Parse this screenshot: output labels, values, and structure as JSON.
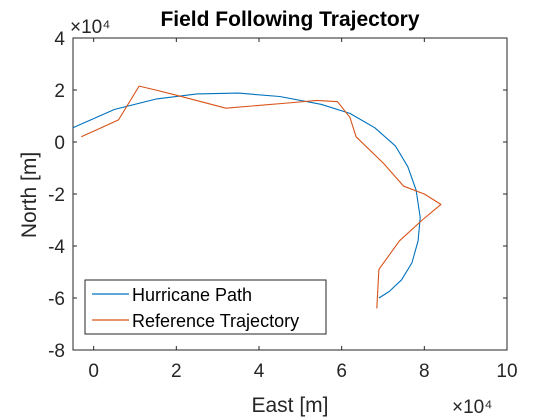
{
  "chart_data": {
    "type": "line",
    "title": "Field Following Trajectory",
    "xlabel": "East [m]",
    "ylabel": "North [m]",
    "x_exponent": "×10⁴",
    "y_exponent": "×10⁴",
    "xlim": [
      -0.5,
      10
    ],
    "ylim": [
      -8,
      4
    ],
    "xticks": [
      0,
      2,
      4,
      6,
      8,
      10
    ],
    "yticks": [
      4,
      2,
      0,
      -2,
      -4,
      -6,
      -8
    ],
    "xtick_labels": [
      "0",
      "2",
      "4",
      "6",
      "8",
      "10"
    ],
    "ytick_labels": [
      "4",
      "2",
      "0",
      "-2",
      "-4",
      "-6",
      "-8"
    ],
    "legend_position": "bottom-left",
    "grid": false,
    "series": [
      {
        "name": "Hurricane Path",
        "color": "#0072bd",
        "x": [
          -0.5,
          0.5,
          1.5,
          2.5,
          3.5,
          4.5,
          5.5,
          6.2,
          6.8,
          7.3,
          7.6,
          7.8,
          7.9,
          7.85,
          7.7,
          7.45,
          7.15,
          6.9
        ],
        "y": [
          0.55,
          1.25,
          1.65,
          1.85,
          1.88,
          1.75,
          1.45,
          1.1,
          0.55,
          -0.15,
          -0.95,
          -1.85,
          -2.9,
          -3.8,
          -4.65,
          -5.3,
          -5.75,
          -6.0
        ]
      },
      {
        "name": "Reference Trajectory",
        "color": "#d95319",
        "x": [
          -0.3,
          0.6,
          1.1,
          1.5,
          2.0,
          3.2,
          4.7,
          5.4,
          5.9,
          6.2,
          6.35,
          7.0,
          7.5,
          8.0,
          8.4,
          7.95,
          7.4,
          6.9,
          6.85
        ],
        "y": [
          0.2,
          0.85,
          2.15,
          2.0,
          1.8,
          1.3,
          1.5,
          1.6,
          1.55,
          0.95,
          0.2,
          -0.8,
          -1.7,
          -2.0,
          -2.4,
          -3.0,
          -3.8,
          -4.9,
          -6.4
        ]
      }
    ]
  }
}
